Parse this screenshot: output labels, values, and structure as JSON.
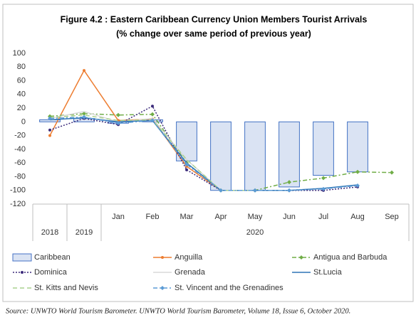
{
  "chart_data": {
    "type": "combo",
    "title": "Figure 4.2 : Eastern Caribbean Currency Union Members Tourist Arrivals",
    "subtitle": "(% change over same period of previous year)",
    "categories": [
      "2018",
      "2019",
      "Jan",
      "Feb",
      "Mar",
      "Apr",
      "May",
      "Jun",
      "Jul",
      "Aug",
      "Sep"
    ],
    "group_label": "2020",
    "ylim": [
      -120,
      100
    ],
    "yticks": [
      -120,
      -100,
      -80,
      -60,
      -40,
      -20,
      0,
      20,
      40,
      60,
      80,
      100
    ],
    "grid": false,
    "series": [
      {
        "name": "Caribbean",
        "type": "bar",
        "color": "#dae3f3",
        "stroke": "#4472c4",
        "values": [
          3,
          5,
          -2,
          3,
          -57,
          -100,
          -100,
          -95,
          -78,
          -73,
          null
        ]
      },
      {
        "name": "Anguilla",
        "type": "line",
        "color": "#ed7d31",
        "dash": "none",
        "marker": "circle",
        "values": [
          -20,
          75,
          2,
          4,
          -65,
          -100,
          -100,
          null,
          null,
          null,
          null
        ]
      },
      {
        "name": "Antigua and Barbuda",
        "type": "line",
        "color": "#70ad47",
        "dash": "6 3 2 3",
        "marker": "diamond",
        "values": [
          8,
          12,
          10,
          11,
          -60,
          -100,
          -100,
          -88,
          -82,
          -73,
          -74
        ]
      },
      {
        "name": "Dominica",
        "type": "line",
        "color": "#3b2a7a",
        "dash": "2 2",
        "marker": "circle",
        "values": [
          -12,
          5,
          -4,
          23,
          -70,
          -100,
          -100,
          -100,
          -100,
          -95,
          null
        ]
      },
      {
        "name": "Grenada",
        "type": "line",
        "color": "#d9d9d9",
        "dash": "none",
        "marker": "none",
        "values": [
          5,
          15,
          0,
          5,
          -55,
          -100,
          -100,
          null,
          null,
          null,
          null
        ]
      },
      {
        "name": "St.Lucia",
        "type": "line",
        "color": "#2e75b6",
        "dash": "none",
        "marker": "none",
        "values": [
          3,
          6,
          0,
          2,
          -60,
          -100,
          -100,
          -100,
          -97,
          -92,
          null
        ]
      },
      {
        "name": "St. Kitts and Nevis",
        "type": "line",
        "color": "#a9d18e",
        "dash": "6 4",
        "marker": "none",
        "values": [
          6,
          10,
          2,
          3,
          -55,
          -100,
          -100,
          null,
          null,
          null,
          null
        ]
      },
      {
        "name": "St. Vincent and the Grenadines",
        "type": "line",
        "color": "#5b9bd5",
        "dash": "6 3 2 3",
        "marker": "diamond",
        "values": [
          5,
          7,
          -2,
          2,
          -62,
          -100,
          -100,
          -100,
          -98,
          -93,
          null
        ]
      }
    ],
    "source": "Source: UNWTO World Tourism Barometer. UNWTO World Tourism Barometer, Volume 18, Issue 6, October 2020."
  }
}
